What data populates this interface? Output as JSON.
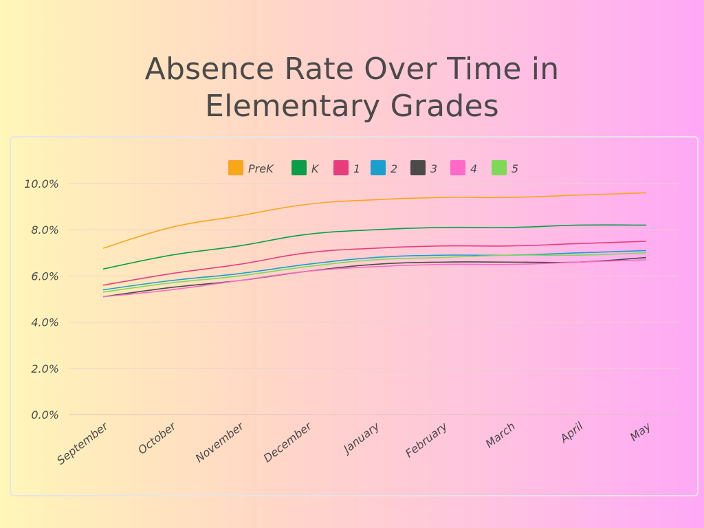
{
  "chart_data": {
    "type": "line",
    "title_lines": [
      "Absence Rate Over Time in",
      "Elementary Grades"
    ],
    "xlabel": "",
    "ylabel": "",
    "categories": [
      "September",
      "October",
      "November",
      "December",
      "January",
      "February",
      "March",
      "April",
      "May"
    ],
    "ylim": [
      0,
      10
    ],
    "yticks": [
      0,
      2,
      4,
      6,
      8,
      10
    ],
    "ytick_labels": [
      "0.0%",
      "2.0%",
      "4.0%",
      "6.0%",
      "8.0%",
      "10.0%"
    ],
    "grid": true,
    "legend_position": "top-center",
    "series": [
      {
        "name": "PreK",
        "color": "#f9a61a",
        "values": [
          7.2,
          8.1,
          8.6,
          9.1,
          9.3,
          9.4,
          9.4,
          9.5,
          9.6
        ]
      },
      {
        "name": "K",
        "color": "#0a9e4a",
        "values": [
          6.3,
          6.9,
          7.3,
          7.8,
          8.0,
          8.1,
          8.1,
          8.2,
          8.2
        ]
      },
      {
        "name": "1",
        "color": "#e83c7c",
        "values": [
          5.6,
          6.1,
          6.5,
          7.0,
          7.2,
          7.3,
          7.3,
          7.4,
          7.5
        ]
      },
      {
        "name": "2",
        "color": "#1a9fcf",
        "values": [
          5.4,
          5.8,
          6.1,
          6.5,
          6.8,
          6.9,
          6.9,
          7.0,
          7.1
        ]
      },
      {
        "name": "3",
        "color": "#4a4a4a",
        "values": [
          5.1,
          5.5,
          5.8,
          6.2,
          6.5,
          6.6,
          6.6,
          6.6,
          6.8
        ]
      },
      {
        "name": "4",
        "color": "#ff69c8",
        "values": [
          5.1,
          5.4,
          5.8,
          6.2,
          6.4,
          6.5,
          6.5,
          6.6,
          6.7
        ]
      },
      {
        "name": "5",
        "color": "#7ed957",
        "values": [
          5.3,
          5.7,
          6.0,
          6.4,
          6.7,
          6.8,
          6.9,
          6.9,
          7.0
        ]
      }
    ]
  }
}
